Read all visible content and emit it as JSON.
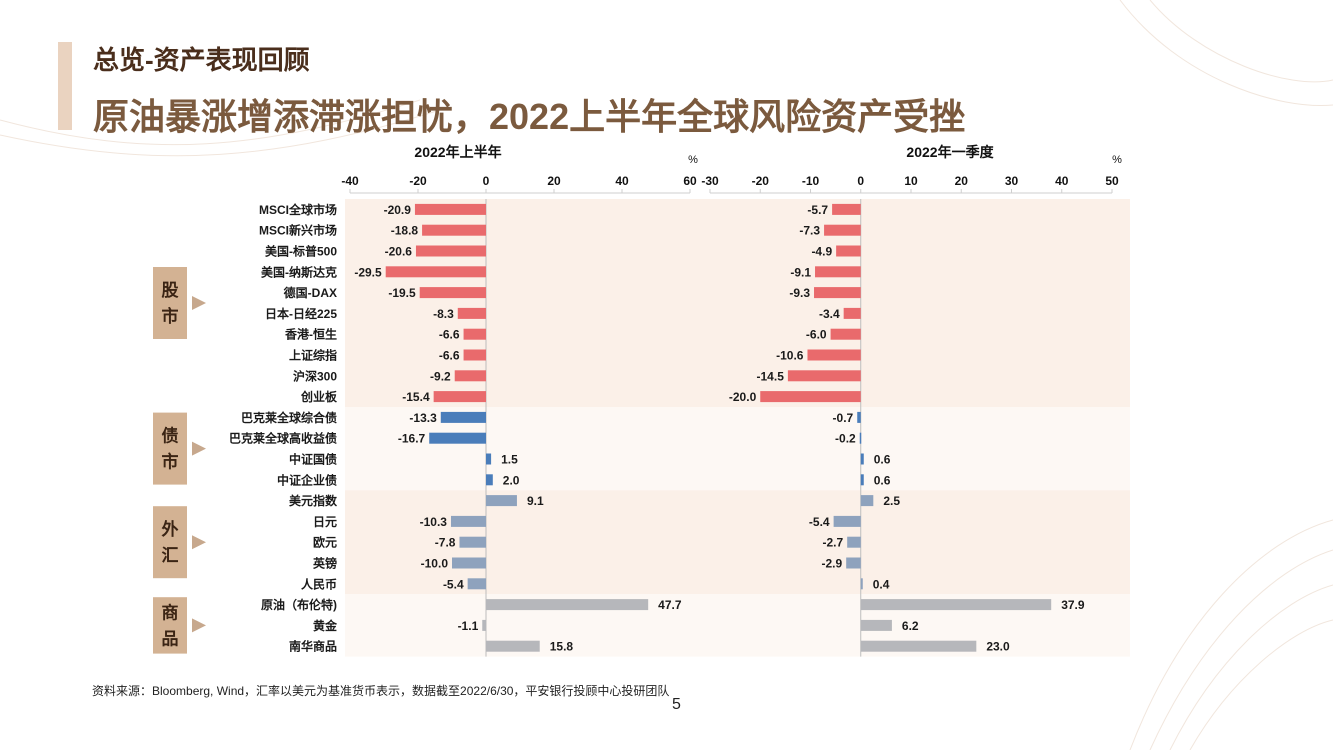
{
  "header": {
    "subtitle": "总览-资产表现回顾",
    "title": "原油暴涨增添滞涨担忧，2022上半年全球风险资产受挫"
  },
  "footer": {
    "source": "资料来源：Bloomberg, Wind，汇率以美元为基准货币表示，数据截至2022/6/30，平安银行投顾中心投研团队",
    "page": "5"
  },
  "colors": {
    "equity": "#e96a6c",
    "bond": "#4a7dba",
    "fx": "#8ea2bd",
    "commodity": "#b6b7bb",
    "group_label_bg": "#d3b293",
    "band_bg": "#fbf1ea",
    "title": "#7b5a3e"
  },
  "chart_data": {
    "type": "bar",
    "orientation": "horizontal",
    "unit": "%",
    "groups": [
      {
        "label": "股市",
        "color_key": "equity",
        "start": 0,
        "end": 9
      },
      {
        "label": "债市",
        "color_key": "bond",
        "start": 10,
        "end": 13
      },
      {
        "label": "外汇",
        "color_key": "fx",
        "start": 14,
        "end": 18
      },
      {
        "label": "商品",
        "color_key": "commodity",
        "start": 19,
        "end": 21
      }
    ],
    "categories": [
      "MSCI全球市场",
      "MSCI新兴市场",
      "美国-标普500",
      "美国-纳斯达克",
      "德国-DAX",
      "日本-日经225",
      "香港-恒生",
      "上证综指",
      "沪深300",
      "创业板",
      "巴克莱全球综合债",
      "巴克莱全球高收益债",
      "中证国债",
      "中证企业债",
      "美元指数",
      "日元",
      "欧元",
      "英镑",
      "人民币",
      "原油（布伦特)",
      "黄金",
      "南华商品"
    ],
    "series": [
      {
        "name": "2022年上半年",
        "xlim": [
          -40,
          60
        ],
        "ticks": [
          "-40",
          "-20",
          "0",
          "20",
          "40",
          "60"
        ],
        "values": [
          -20.9,
          -18.8,
          -20.6,
          -29.5,
          -19.5,
          -8.3,
          -6.6,
          -6.6,
          -9.2,
          -15.4,
          -13.3,
          -16.7,
          1.5,
          2.0,
          9.1,
          -10.3,
          -7.8,
          -10.0,
          -5.4,
          47.7,
          -1.1,
          15.8
        ],
        "labels": [
          "-20.9",
          "-18.8",
          "-20.6",
          "-29.5",
          "-19.5",
          "-8.3",
          "-6.6",
          "-6.6",
          "-9.2",
          "-15.4",
          "-13.3",
          "-16.7",
          "1.5",
          "2.0",
          "9.1",
          "-10.3",
          "-7.8",
          "-10.0",
          "-5.4",
          "47.7",
          "-1.1",
          "15.8"
        ]
      },
      {
        "name": "2022年一季度",
        "xlim": [
          -30,
          50
        ],
        "ticks": [
          "-30",
          "-20",
          "-10",
          "0",
          "10",
          "20",
          "30",
          "40",
          "50"
        ],
        "values": [
          -5.7,
          -7.3,
          -4.9,
          -9.1,
          -9.3,
          -3.4,
          -6.0,
          -10.6,
          -14.5,
          -20.0,
          -0.7,
          -0.2,
          0.6,
          0.6,
          2.5,
          -5.4,
          -2.7,
          -2.9,
          0.4,
          37.9,
          6.2,
          23.0
        ],
        "labels": [
          "-5.7",
          "-7.3",
          "-4.9",
          "-9.1",
          "-9.3",
          "-3.4",
          "-6.0",
          "-10.6",
          "-14.5",
          "-20.0",
          "-0.7",
          "-0.2",
          "0.6",
          "0.6",
          "2.5",
          "-5.4",
          "-2.7",
          "-2.9",
          "0.4",
          "37.9",
          "6.2",
          "23.0"
        ]
      }
    ],
    "series_color_keys": [
      "equity",
      "equity",
      "equity",
      "equity",
      "equity",
      "equity",
      "equity",
      "equity",
      "equity",
      "equity",
      "bond",
      "bond",
      "bond",
      "bond",
      "fx",
      "fx",
      "fx",
      "fx",
      "fx",
      "commodity",
      "commodity",
      "commodity"
    ]
  }
}
